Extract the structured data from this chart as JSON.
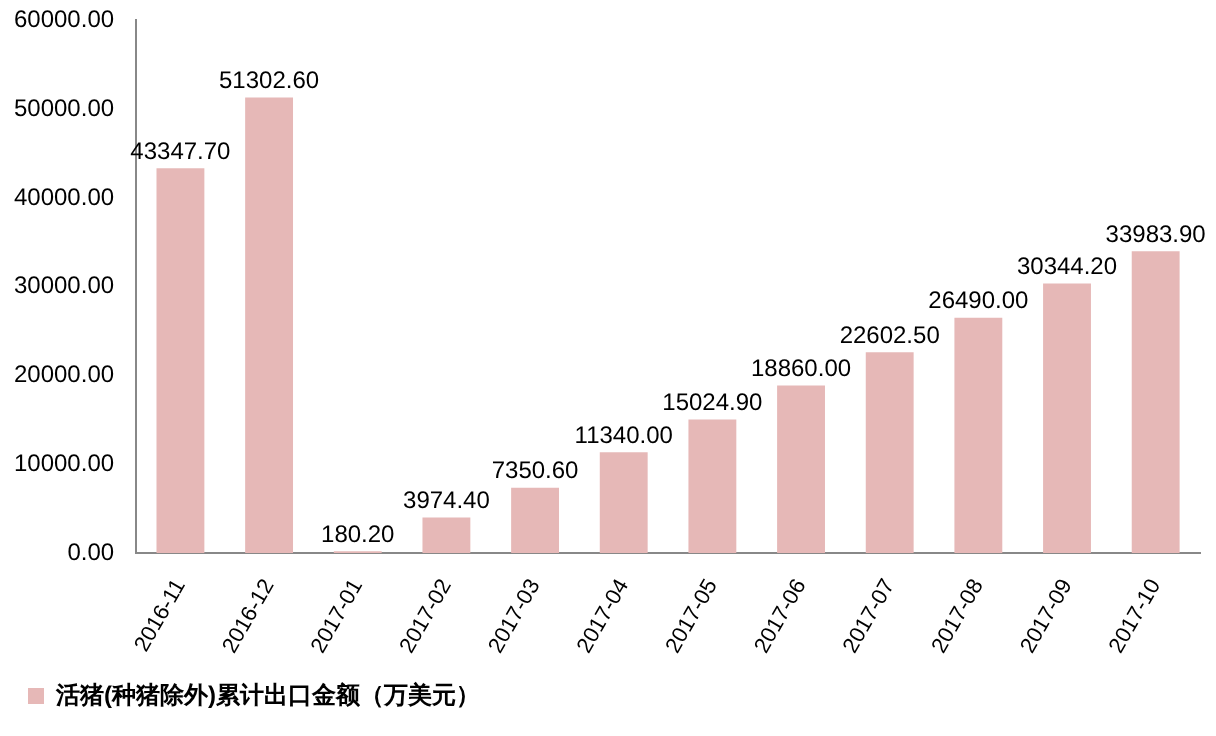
{
  "chart_data": {
    "type": "bar",
    "categories": [
      "2016-11",
      "2016-12",
      "2017-01",
      "2017-02",
      "2017-03",
      "2017-04",
      "2017-05",
      "2017-06",
      "2017-07",
      "2017-08",
      "2017-09",
      "2017-10"
    ],
    "series": [
      {
        "name": "活猪(种猪除外)累计出口金额（万美元）",
        "color": "#e6b8b7",
        "values": [
          43347.7,
          51302.6,
          180.2,
          3974.4,
          7350.6,
          11340,
          15024.9,
          18860,
          22602.5,
          26490,
          30344.2,
          33983.9
        ],
        "value_labels": [
          "43347.70",
          "51302.60",
          "180.20",
          "3974.40",
          "7350.60",
          "11340.00",
          "15024.90",
          "18860.00",
          "22602.50",
          "26490.00",
          "30344.20",
          "33983.90"
        ]
      }
    ],
    "ylim": [
      0,
      60000
    ],
    "yticks": [
      {
        "value": 0,
        "label": "0.00"
      },
      {
        "value": 10000,
        "label": "10000.00"
      },
      {
        "value": 20000,
        "label": "20000.00"
      },
      {
        "value": 30000,
        "label": "30000.00"
      },
      {
        "value": 40000,
        "label": "40000.00"
      },
      {
        "value": 50000,
        "label": "50000.00"
      },
      {
        "value": 60000,
        "label": "60000.00"
      }
    ],
    "grid": false,
    "legend": "bottom left"
  }
}
